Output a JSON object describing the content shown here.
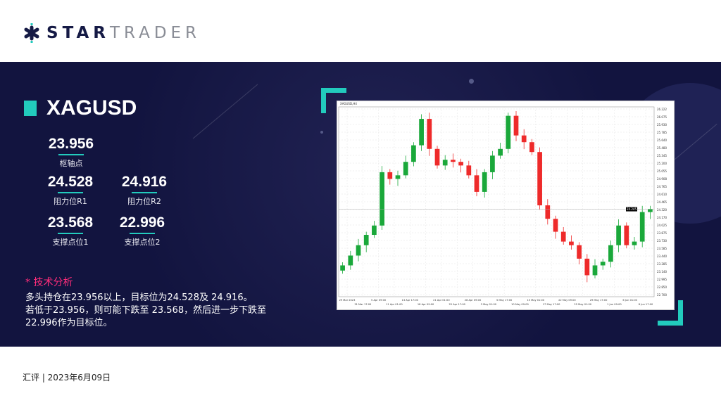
{
  "brand": {
    "name_bold": "STAR",
    "name_light": "TRADER",
    "colors": {
      "navy": "#12143f",
      "teal": "#22cbbd",
      "pink": "#ff2d7a"
    }
  },
  "symbol": "XAGUSD",
  "levels": [
    {
      "value": "23.956",
      "label": "枢轴点"
    },
    {
      "value": "24.528",
      "label": "阻力位R1"
    },
    {
      "value": "24.916",
      "label": "阻力位R2"
    },
    {
      "value": "23.568",
      "label": "支撑点位1"
    },
    {
      "value": "22.996",
      "label": "支撑点位2"
    }
  ],
  "analysis": {
    "heading": "* 技术分析",
    "lines": [
      "多头持仓在23.956以上，目标位为24.528及 24.916。",
      "若低于23.956，则可能下跌至 23.568，然后进一步下跌至",
      "22.996作为目标位。"
    ]
  },
  "footer": "汇评 | 2023年6月09日",
  "chart_data": {
    "type": "candlestick",
    "title": "XAGUSD,H4",
    "ylim": [
      22.555,
      26.222
    ],
    "yticks": [
      "26.222",
      "26.075",
      "25.930",
      "25.785",
      "25.640",
      "25.480",
      "25.345",
      "25.200",
      "25.055",
      "24.908",
      "24.765",
      "24.610",
      "24.465",
      "24.320",
      "24.170",
      "24.025",
      "23.875",
      "23.730",
      "23.585",
      "23.440",
      "23.285",
      "23.140",
      "22.995",
      "22.850",
      "22.700"
    ],
    "current_price": "24.245",
    "xticks": [
      "29 Mar 2023",
      "31 Mar 17:00",
      "5 Apr 09:00",
      "11 Apr 01:00",
      "13 Apr 17:00",
      "18 Apr 09:00",
      "21 Apr 01:00",
      "25 Apr 17:00",
      "28 Apr 09:00",
      "3 May 01:00",
      "5 May 17:00",
      "10 May 09:00",
      "15 May 01:00",
      "17 May 17:00",
      "22 May 09:00",
      "25 May 01:00",
      "29 May 17:00",
      "1 Jun 09:00",
      "6 Jun 01:00",
      "8 Jun 17:00"
    ],
    "closes": [
      23.16,
      23.35,
      23.55,
      23.75,
      23.93,
      24.96,
      24.83,
      24.9,
      25.16,
      25.48,
      25.99,
      25.41,
      25.09,
      25.2,
      25.16,
      25.09,
      24.9,
      24.58,
      24.96,
      25.28,
      25.41,
      26.05,
      25.67,
      25.54,
      25.35,
      24.32,
      24.06,
      23.81,
      23.62,
      23.55,
      23.29,
      22.97,
      23.16,
      23.23,
      23.55,
      23.93,
      23.55,
      23.62,
      24.19,
      24.25
    ],
    "grid": true,
    "up_color": "#1aa83a",
    "down_color": "#ee2a2a"
  }
}
